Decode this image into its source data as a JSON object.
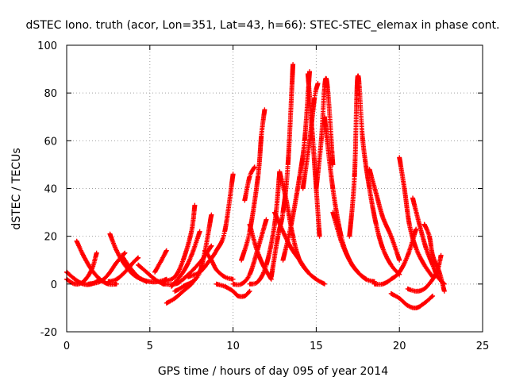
{
  "chart_data": {
    "type": "scatter",
    "title": "dSTEC Iono. truth (acor, Lon=351, Lat=43, h=66): STEC-STEC_elemax in phase cont.",
    "xlabel": "GPS time / hours of day 095 of year 2014",
    "ylabel": "dSTEC  / TECUs",
    "xlim": [
      0,
      25
    ],
    "ylim": [
      -20,
      100
    ],
    "xticks": [
      0,
      5,
      10,
      15,
      20,
      25
    ],
    "yticks": [
      -20,
      0,
      20,
      40,
      60,
      80,
      100
    ],
    "grid": true,
    "marker": "plus",
    "color": "#ff0000",
    "series": [
      {
        "x": [
          0.0,
          0.5,
          1.0,
          1.5,
          2.0
        ],
        "y": [
          5,
          2,
          0,
          0,
          2
        ]
      },
      {
        "x": [
          0.0,
          0.5,
          1.0,
          1.5,
          1.8
        ],
        "y": [
          2,
          0,
          1,
          6,
          13
        ]
      },
      {
        "x": [
          0.6,
          1.0,
          1.5,
          2.0,
          2.5,
          3.0
        ],
        "y": [
          18,
          12,
          6,
          2,
          0,
          0
        ]
      },
      {
        "x": [
          1.3,
          2.0,
          2.5,
          3.0,
          3.5
        ],
        "y": [
          0,
          1,
          4,
          9,
          13
        ]
      },
      {
        "x": [
          2.6,
          3.0,
          3.5,
          4.0,
          4.5,
          5.0,
          5.5,
          6.0
        ],
        "y": [
          21,
          14,
          8,
          4,
          2,
          1,
          1,
          2
        ]
      },
      {
        "x": [
          2.5,
          3.0,
          3.5,
          4.0,
          4.3
        ],
        "y": [
          1,
          2,
          5,
          9,
          11
        ]
      },
      {
        "x": [
          3.3,
          3.8,
          4.3,
          4.8
        ],
        "y": [
          12,
          7,
          3,
          1
        ]
      },
      {
        "x": [
          4.3,
          4.8,
          5.3,
          5.8
        ],
        "y": [
          8,
          5,
          2,
          0
        ]
      },
      {
        "x": [
          5.3,
          5.7,
          6.0
        ],
        "y": [
          5,
          10,
          14
        ]
      },
      {
        "x": [
          6.0,
          6.5,
          7.0,
          7.5,
          7.7
        ],
        "y": [
          -8,
          -6,
          -3,
          0,
          2
        ]
      },
      {
        "x": [
          5.8,
          6.5,
          7.0,
          7.5,
          7.7
        ],
        "y": [
          1,
          3,
          10,
          22,
          33
        ]
      },
      {
        "x": [
          6.3,
          7.0,
          7.5,
          8.0
        ],
        "y": [
          -1,
          5,
          12,
          22
        ]
      },
      {
        "x": [
          5.8,
          6.5,
          7.0,
          8.0,
          8.7
        ],
        "y": [
          0,
          0,
          2,
          9,
          16
        ]
      },
      {
        "x": [
          6.5,
          7.0,
          8.0,
          8.7
        ],
        "y": [
          -3,
          -1,
          5,
          29
        ]
      },
      {
        "x": [
          7.3,
          8.0,
          8.5,
          9.0,
          9.5,
          10.0
        ],
        "y": [
          3,
          5,
          9,
          14,
          22,
          46
        ]
      },
      {
        "x": [
          9.0,
          9.5,
          10.0,
          10.3,
          10.7,
          11.0
        ],
        "y": [
          0,
          -1,
          -3,
          -5,
          -5,
          -3
        ]
      },
      {
        "x": [
          8.3,
          8.7,
          9.0,
          9.5,
          10.0
        ],
        "y": [
          14,
          10,
          6,
          3,
          2
        ]
      },
      {
        "x": [
          10.0,
          10.5,
          11.0,
          11.5,
          12.0
        ],
        "y": [
          0,
          0,
          4,
          15,
          27
        ]
      },
      {
        "x": [
          10.5,
          11.0,
          11.5,
          11.7,
          11.9
        ],
        "y": [
          10,
          22,
          45,
          62,
          73
        ]
      },
      {
        "x": [
          10.7,
          11.0,
          11.3
        ],
        "y": [
          35,
          45,
          49
        ]
      },
      {
        "x": [
          11.0,
          11.4,
          11.8,
          12.3
        ],
        "y": [
          25,
          15,
          8,
          2
        ]
      },
      {
        "x": [
          11.0,
          11.5,
          12.0,
          12.5,
          12.8
        ],
        "y": [
          0,
          1,
          8,
          25,
          47
        ]
      },
      {
        "x": [
          12.3,
          12.7,
          13.0,
          13.3,
          13.6
        ],
        "y": [
          3,
          20,
          30,
          50,
          92
        ]
      },
      {
        "x": [
          12.8,
          13.2,
          13.6,
          14.0,
          14.5
        ],
        "y": [
          47,
          35,
          20,
          10,
          5
        ]
      },
      {
        "x": [
          13.0,
          13.5,
          14.0,
          14.3,
          14.6
        ],
        "y": [
          10,
          25,
          45,
          60,
          89
        ]
      },
      {
        "x": [
          12.5,
          13.0,
          13.5,
          14.0,
          14.5,
          15.0,
          15.5
        ],
        "y": [
          30,
          22,
          15,
          10,
          5,
          2,
          0
        ]
      },
      {
        "x": [
          14.5,
          14.8,
          15.0,
          15.2
        ],
        "y": [
          88,
          60,
          40,
          20
        ]
      },
      {
        "x": [
          14.2,
          14.6,
          14.9,
          15.1
        ],
        "y": [
          40,
          60,
          78,
          84
        ]
      },
      {
        "x": [
          15.0,
          15.3,
          15.6,
          16.0
        ],
        "y": [
          40,
          60,
          86,
          50
        ]
      },
      {
        "x": [
          15.5,
          16.0,
          16.5,
          17.0,
          17.5,
          18.0
        ],
        "y": [
          70,
          40,
          20,
          10,
          5,
          2
        ]
      },
      {
        "x": [
          16.0,
          16.5,
          17.0,
          17.5,
          18.0,
          18.5
        ],
        "y": [
          30,
          18,
          10,
          5,
          2,
          1
        ]
      },
      {
        "x": [
          17.0,
          17.3,
          17.5,
          17.8,
          18.2,
          18.6,
          19.0,
          19.5,
          20.0
        ],
        "y": [
          20,
          45,
          87,
          60,
          40,
          25,
          15,
          8,
          4
        ]
      },
      {
        "x": [
          18.2,
          18.6,
          19.0,
          19.5,
          20.0
        ],
        "y": [
          48,
          38,
          28,
          20,
          10
        ]
      },
      {
        "x": [
          18.5,
          19.0,
          19.5,
          20.0,
          20.5,
          21.0
        ],
        "y": [
          0,
          0,
          2,
          5,
          12,
          23
        ]
      },
      {
        "x": [
          20.0,
          20.3,
          20.6,
          21.0,
          21.5,
          22.0
        ],
        "y": [
          53,
          40,
          25,
          15,
          8,
          3
        ]
      },
      {
        "x": [
          19.5,
          20.0,
          20.5,
          21.0,
          21.5,
          22.0
        ],
        "y": [
          -4,
          -6,
          -9,
          -10,
          -8,
          -5
        ]
      },
      {
        "x": [
          20.8,
          21.2,
          21.6,
          22.0,
          22.3,
          22.7
        ],
        "y": [
          36,
          25,
          15,
          8,
          3,
          0
        ]
      },
      {
        "x": [
          21.5,
          21.8,
          22.0,
          22.4,
          22.7
        ],
        "y": [
          25,
          20,
          12,
          5,
          -3
        ]
      },
      {
        "x": [
          20.5,
          21.0,
          21.5,
          22.0,
          22.3,
          22.5
        ],
        "y": [
          -2,
          -3,
          -2,
          2,
          6,
          12
        ]
      }
    ]
  }
}
